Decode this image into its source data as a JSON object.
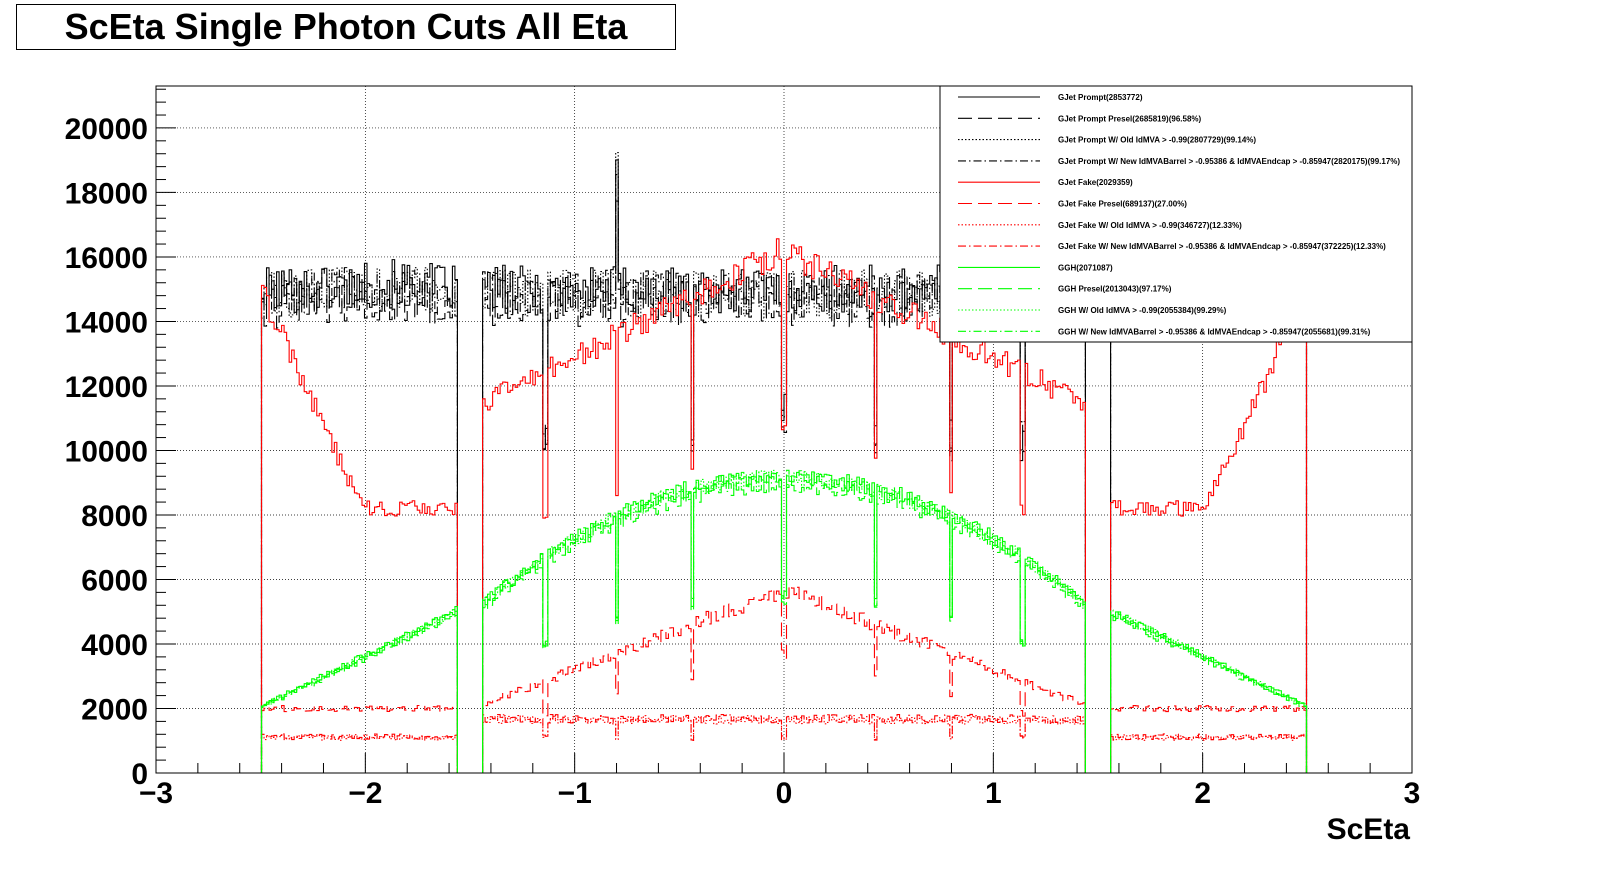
{
  "chart_data": {
    "type": "line",
    "title": "ScEta Single Photon Cuts All Eta",
    "xlabel": "ScEta",
    "ylabel": "",
    "xlim": [
      -3,
      3
    ],
    "ylim": [
      0,
      21300
    ],
    "x_ticks": [
      -3,
      -2,
      -1,
      0,
      1,
      2,
      3
    ],
    "x_tick_labels": [
      "−3",
      "−2",
      "−1",
      "0",
      "1",
      "2",
      "3"
    ],
    "y_ticks": [
      0,
      2000,
      4000,
      6000,
      8000,
      10000,
      12000,
      14000,
      16000,
      18000,
      20000
    ],
    "y_tick_labels": [
      "0",
      "2000",
      "4000",
      "6000",
      "8000",
      "10000",
      "12000",
      "14000",
      "16000",
      "18000",
      "20000"
    ],
    "grid": true,
    "legend_position": "top-right",
    "series": [
      {
        "name": "GJet Prompt(2853772)",
        "color": "#000000",
        "dash": "solid",
        "kind": "prompt",
        "level": 1.0
      },
      {
        "name": "GJet Prompt Presel(2685819)(96.58%)",
        "color": "#000000",
        "dash": "longdash",
        "kind": "prompt",
        "level": 0.97
      },
      {
        "name": "GJet Prompt W/ Old IdMVA > -0.99(2807729)(99.14%)",
        "color": "#000000",
        "dash": "dot",
        "kind": "prompt",
        "level": 0.99
      },
      {
        "name": "GJet Prompt W/ New IdMVABarrel > -0.95386 & IdMVAEndcap > -0.85947(2820175)(99.17%)",
        "color": "#000000",
        "dash": "dashdot",
        "kind": "prompt",
        "level": 0.992
      },
      {
        "name": "GJet Fake(2029359)",
        "color": "#ff0000",
        "dash": "solid",
        "kind": "fake",
        "level": 1.0
      },
      {
        "name": "GJet Fake Presel(689137)(27.00%)",
        "color": "#ff0000",
        "dash": "longdash",
        "kind": "fakepresel",
        "level": 1.0
      },
      {
        "name": "GJet Fake W/ Old IdMVA > -0.99(346727)(12.33%)",
        "color": "#ff0000",
        "dash": "dot",
        "kind": "fakeidmva",
        "level": 1.0
      },
      {
        "name": "GJet Fake W/ New IdMVABarrel > -0.95386 & IdMVAEndcap > -0.85947(372225)(12.33%)",
        "color": "#ff0000",
        "dash": "dashdot",
        "kind": "fakeidmva",
        "level": 1.02
      },
      {
        "name": "GGH(2071087)",
        "color": "#00ff00",
        "dash": "solid",
        "kind": "ggh",
        "level": 1.0
      },
      {
        "name": "GGH Presel(2013043)(97.17%)",
        "color": "#00ff00",
        "dash": "longdash",
        "kind": "ggh",
        "level": 0.972
      },
      {
        "name": "GGH W/ Old IdMVA > -0.99(2055384)(99.29%)",
        "color": "#00ff00",
        "dash": "dot",
        "kind": "ggh",
        "level": 0.993
      },
      {
        "name": "GGH W/ New IdMVABarrel > -0.95386 & IdMVAEndcap > -0.85947(2055681)(99.31%)",
        "color": "#00ff00",
        "dash": "dashdot",
        "kind": "ggh",
        "level": 0.993
      }
    ]
  }
}
